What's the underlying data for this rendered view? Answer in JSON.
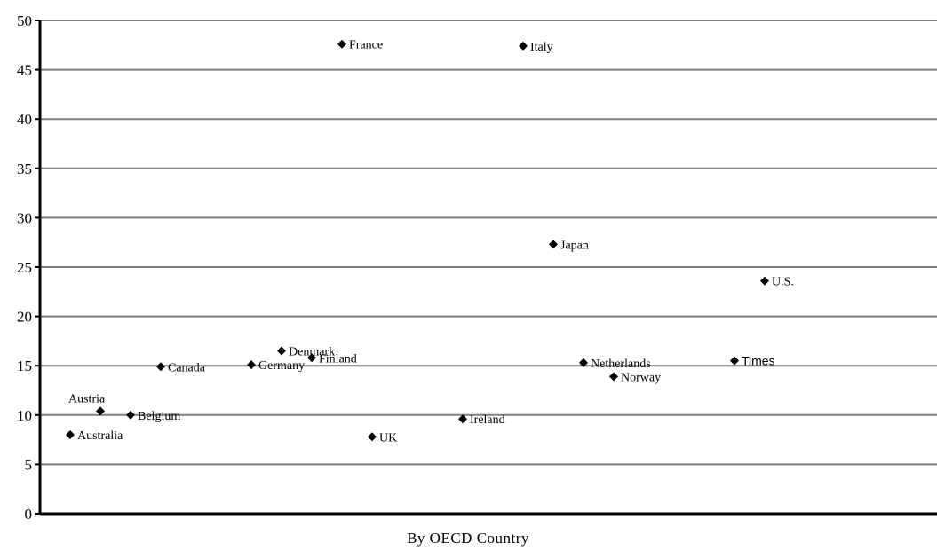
{
  "chart_data": {
    "type": "scatter",
    "title": "",
    "xlabel": "By OECD Country",
    "ylabel": "",
    "ylim": [
      0,
      50
    ],
    "yticks": [
      0,
      5,
      10,
      15,
      20,
      25,
      30,
      35,
      40,
      45,
      50
    ],
    "grid": true,
    "legend": "none",
    "marker": "diamond",
    "colors": {
      "marker": "#000000",
      "grid": "#808080",
      "axis": "#000000"
    },
    "points": [
      {
        "label": "Australia",
        "x": 1,
        "y": 8.0
      },
      {
        "label": "Austria",
        "x": 2,
        "y": 10.4
      },
      {
        "label": "Belgium",
        "x": 3,
        "y": 10.0
      },
      {
        "label": "Canada",
        "x": 4,
        "y": 14.9
      },
      {
        "label": "Germany",
        "x": 7,
        "y": 15.1
      },
      {
        "label": "Denmark",
        "x": 8,
        "y": 16.5
      },
      {
        "label": "Finland",
        "x": 9,
        "y": 15.8
      },
      {
        "label": "France",
        "x": 10,
        "y": 47.6
      },
      {
        "label": "UK",
        "x": 11,
        "y": 7.8
      },
      {
        "label": "Ireland",
        "x": 14,
        "y": 9.6
      },
      {
        "label": "Italy",
        "x": 16,
        "y": 47.4
      },
      {
        "label": "Japan",
        "x": 17,
        "y": 27.3
      },
      {
        "label": "Netherlands",
        "x": 18,
        "y": 15.3
      },
      {
        "label": "Norway",
        "x": 19,
        "y": 13.9
      },
      {
        "label": "Times",
        "x": 23,
        "y": 15.5
      },
      {
        "label": "U.S.",
        "x": 24,
        "y": 23.6
      }
    ]
  }
}
